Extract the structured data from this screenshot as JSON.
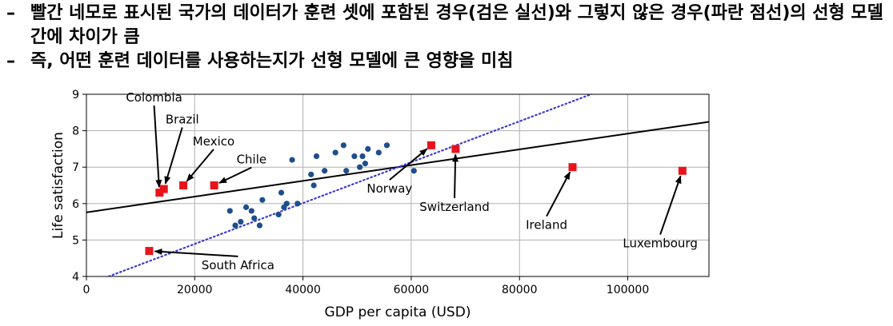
{
  "bullets": [
    {
      "marker": "–",
      "text": "빨간 네모로 표시된 국가의 데이터가 훈련 셋에 포함된 경우(검은 실선)와 그렇지 않은 경우(파란 점선)의 선형 모델 간에 차이가 큼"
    },
    {
      "marker": "–",
      "text": "즉, 어떤 훈련 데이터를 사용하는지가 선형 모델에 큰 영향을 미침"
    }
  ],
  "chart_data": {
    "type": "scatter",
    "title": "",
    "xlabel": "GDP per capita (USD)",
    "ylabel": "Life satisfaction",
    "xlim": [
      0,
      115000
    ],
    "ylim": [
      4,
      9
    ],
    "xticks": [
      0,
      20000,
      40000,
      60000,
      80000,
      100000
    ],
    "xtick_labels": [
      "0",
      "20000",
      "40000",
      "60000",
      "80000",
      "100000"
    ],
    "yticks": [
      4,
      5,
      6,
      7,
      8,
      9
    ],
    "ytick_labels": [
      "4",
      "5",
      "6",
      "7",
      "8",
      "9"
    ],
    "grid": true,
    "colors": {
      "included": "#1f4e8c",
      "outliers": "#e8141c",
      "full_fit": "#000000",
      "partial_fit": "#3a3ad6"
    },
    "series": [
      {
        "marker": "circle",
        "x": [
          26500,
          27500,
          28500,
          29500,
          30500,
          31000,
          32000,
          32500,
          35500,
          36500,
          39000,
          37000,
          36000,
          38000,
          42000,
          42500,
          44000,
          46000,
          47500,
          48000,
          49500,
          50500,
          51500,
          51000,
          52000,
          54000,
          55500,
          60500,
          41500
        ],
        "y": [
          5.8,
          5.4,
          5.5,
          5.9,
          5.8,
          5.6,
          5.4,
          6.1,
          5.7,
          5.9,
          6.0,
          6.0,
          6.3,
          7.2,
          6.5,
          7.3,
          6.9,
          7.4,
          7.6,
          6.9,
          7.3,
          7.0,
          7.1,
          7.3,
          7.5,
          7.4,
          7.6,
          6.9,
          6.8
        ]
      },
      {
        "marker": "square",
        "x": [
          13500,
          14300,
          17900,
          23600,
          63700,
          68200,
          89800,
          110100,
          11600
        ],
        "y": [
          6.3,
          6.4,
          6.5,
          6.5,
          7.6,
          7.5,
          7.0,
          6.9,
          4.7
        ]
      }
    ],
    "lines": [
      {
        "style": "solid",
        "intercept": 5.76,
        "slope": 2.16e-05
      },
      {
        "style": "dotted",
        "intercept": 3.77,
        "slope": 5.61e-05
      }
    ],
    "annotations": [
      {
        "text": "Colombia",
        "point": [
          13500,
          6.3
        ],
        "label_at": [
          12500,
          8.8
        ]
      },
      {
        "text": "Brazil",
        "point": [
          14300,
          6.4
        ],
        "label_at": [
          17700,
          8.2
        ]
      },
      {
        "text": "Mexico",
        "point": [
          17900,
          6.5
        ],
        "label_at": [
          23500,
          7.6
        ]
      },
      {
        "text": "Chile",
        "point": [
          23600,
          6.5
        ],
        "label_at": [
          30500,
          7.1
        ]
      },
      {
        "text": "Norway",
        "point": [
          63700,
          7.6
        ],
        "label_at": [
          56000,
          6.3
        ]
      },
      {
        "text": "Switzerland",
        "point": [
          68200,
          7.5
        ],
        "label_at": [
          68000,
          5.8
        ]
      },
      {
        "text": "Ireland",
        "point": [
          89800,
          7.0
        ],
        "label_at": [
          85000,
          5.3
        ]
      },
      {
        "text": "Luxembourg",
        "point": [
          110100,
          6.9
        ],
        "label_at": [
          106000,
          4.8
        ]
      },
      {
        "text": "South Africa",
        "point": [
          11600,
          4.7
        ],
        "label_at": [
          28000,
          4.2
        ]
      }
    ]
  }
}
